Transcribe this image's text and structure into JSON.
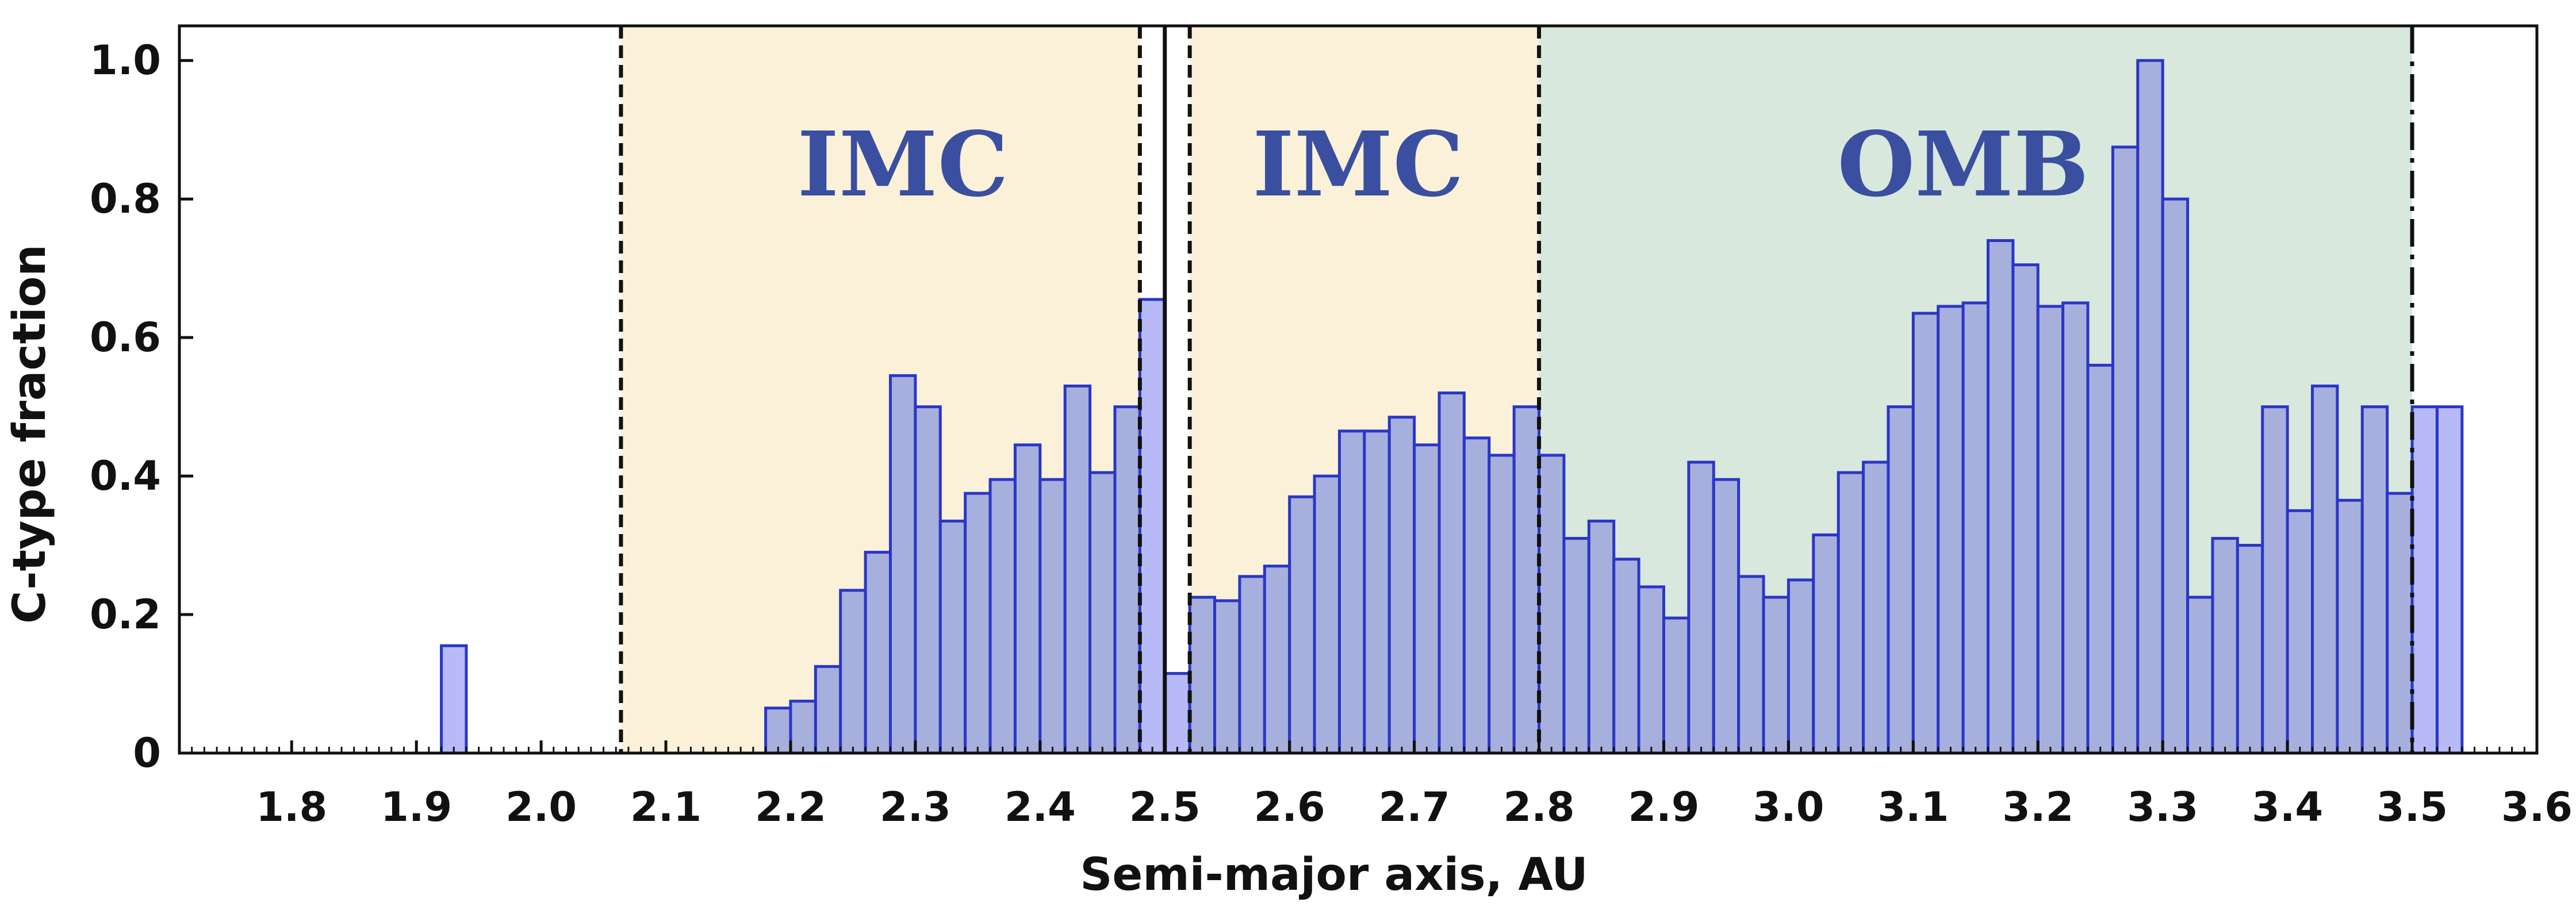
{
  "chart_data": {
    "type": "bar",
    "xlabel": "Semi-major axis, AU",
    "ylabel": "C-type fraction",
    "xlim": [
      1.71,
      3.6
    ],
    "ylim": [
      0,
      1.05
    ],
    "x_ticks": [
      "1.8",
      "1.9",
      "2.0",
      "2.1",
      "2.2",
      "2.3",
      "2.4",
      "2.5",
      "2.6",
      "2.7",
      "2.8",
      "2.9",
      "3.0",
      "3.1",
      "3.2",
      "3.3",
      "3.4",
      "3.5",
      "3.6"
    ],
    "y_ticks": [
      "0",
      "0.2",
      "0.4",
      "0.6",
      "0.8",
      "1.0"
    ],
    "bin_width": 0.02,
    "bins": [
      {
        "x": 1.93,
        "y": 0.155
      },
      {
        "x": 2.19,
        "y": 0.065
      },
      {
        "x": 2.21,
        "y": 0.075
      },
      {
        "x": 2.23,
        "y": 0.125
      },
      {
        "x": 2.25,
        "y": 0.235
      },
      {
        "x": 2.27,
        "y": 0.29
      },
      {
        "x": 2.29,
        "y": 0.545
      },
      {
        "x": 2.31,
        "y": 0.5
      },
      {
        "x": 2.33,
        "y": 0.335
      },
      {
        "x": 2.35,
        "y": 0.375
      },
      {
        "x": 2.37,
        "y": 0.395
      },
      {
        "x": 2.39,
        "y": 0.445
      },
      {
        "x": 2.41,
        "y": 0.395
      },
      {
        "x": 2.43,
        "y": 0.53
      },
      {
        "x": 2.45,
        "y": 0.405
      },
      {
        "x": 2.47,
        "y": 0.5
      },
      {
        "x": 2.49,
        "y": 0.655
      },
      {
        "x": 2.51,
        "y": 0.115
      },
      {
        "x": 2.53,
        "y": 0.225
      },
      {
        "x": 2.55,
        "y": 0.22
      },
      {
        "x": 2.57,
        "y": 0.255
      },
      {
        "x": 2.59,
        "y": 0.27
      },
      {
        "x": 2.61,
        "y": 0.37
      },
      {
        "x": 2.63,
        "y": 0.4
      },
      {
        "x": 2.65,
        "y": 0.465
      },
      {
        "x": 2.67,
        "y": 0.465
      },
      {
        "x": 2.69,
        "y": 0.485
      },
      {
        "x": 2.71,
        "y": 0.445
      },
      {
        "x": 2.73,
        "y": 0.52
      },
      {
        "x": 2.75,
        "y": 0.455
      },
      {
        "x": 2.77,
        "y": 0.43
      },
      {
        "x": 2.79,
        "y": 0.5
      },
      {
        "x": 2.81,
        "y": 0.43
      },
      {
        "x": 2.83,
        "y": 0.31
      },
      {
        "x": 2.85,
        "y": 0.335
      },
      {
        "x": 2.87,
        "y": 0.28
      },
      {
        "x": 2.89,
        "y": 0.24
      },
      {
        "x": 2.91,
        "y": 0.195
      },
      {
        "x": 2.93,
        "y": 0.42
      },
      {
        "x": 2.95,
        "y": 0.395
      },
      {
        "x": 2.97,
        "y": 0.255
      },
      {
        "x": 2.99,
        "y": 0.225
      },
      {
        "x": 3.01,
        "y": 0.25
      },
      {
        "x": 3.03,
        "y": 0.315
      },
      {
        "x": 3.05,
        "y": 0.405
      },
      {
        "x": 3.07,
        "y": 0.42
      },
      {
        "x": 3.09,
        "y": 0.5
      },
      {
        "x": 3.11,
        "y": 0.635
      },
      {
        "x": 3.13,
        "y": 0.645
      },
      {
        "x": 3.15,
        "y": 0.65
      },
      {
        "x": 3.17,
        "y": 0.74
      },
      {
        "x": 3.19,
        "y": 0.705
      },
      {
        "x": 3.21,
        "y": 0.645
      },
      {
        "x": 3.23,
        "y": 0.65
      },
      {
        "x": 3.25,
        "y": 0.56
      },
      {
        "x": 3.27,
        "y": 0.875
      },
      {
        "x": 3.29,
        "y": 1.0
      },
      {
        "x": 3.31,
        "y": 0.8
      },
      {
        "x": 3.33,
        "y": 0.225
      },
      {
        "x": 3.35,
        "y": 0.31
      },
      {
        "x": 3.37,
        "y": 0.3
      },
      {
        "x": 3.39,
        "y": 0.5
      },
      {
        "x": 3.41,
        "y": 0.35
      },
      {
        "x": 3.43,
        "y": 0.53
      },
      {
        "x": 3.45,
        "y": 0.365
      },
      {
        "x": 3.47,
        "y": 0.5
      },
      {
        "x": 3.49,
        "y": 0.375
      },
      {
        "x": 3.51,
        "y": 0.5
      },
      {
        "x": 3.53,
        "y": 0.5
      }
    ],
    "regions": [
      {
        "label": "IMC",
        "x_start": 2.064,
        "x_end": 2.48,
        "label_x": 2.29,
        "color": "#faf1d8"
      },
      {
        "label": "IMC",
        "x_start": 2.52,
        "x_end": 2.8,
        "label_x": 2.655,
        "color": "#faf1d8"
      },
      {
        "label": "OMB",
        "x_start": 2.8,
        "x_end": 3.5,
        "label_x": 3.14,
        "color": "#d8e8dc"
      }
    ],
    "vertical_lines": [
      {
        "x": 2.064,
        "style": "dashed"
      },
      {
        "x": 2.48,
        "style": "dashed"
      },
      {
        "x": 2.5,
        "style": "solid"
      },
      {
        "x": 2.52,
        "style": "dashed"
      },
      {
        "x": 2.8,
        "style": "dashed"
      },
      {
        "x": 3.5,
        "style": "dashdot"
      }
    ],
    "colors": {
      "bar_fill_in_region": "#a7b0dc",
      "bar_fill_outside": "#b7baf6",
      "bar_edge": "#2a36c8",
      "region_label": "#3a4fa0",
      "axis": "#111111"
    }
  }
}
